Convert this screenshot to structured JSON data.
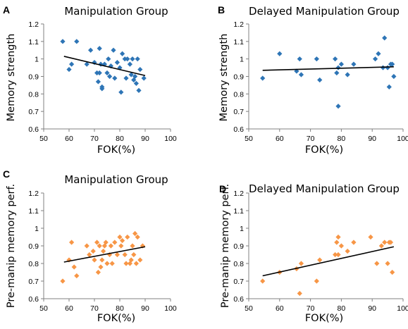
{
  "chart_data": [
    {
      "panel": "A",
      "type": "scatter",
      "title": "Manipulation Group",
      "xlabel": "FOK(%)",
      "ylabel": "Memory strength",
      "xlim": [
        50,
        100
      ],
      "ylim": [
        0.6,
        1.2
      ],
      "xticks": [
        "50",
        "60",
        "70",
        "80",
        "90",
        "100"
      ],
      "yticks": [
        "0.6",
        "0.7",
        "0.8",
        "0.9",
        "1",
        "1.1",
        "1.2"
      ],
      "marker_color": "#2E75B6",
      "marker": "diamond",
      "trendline": {
        "x": [
          58,
          90
        ],
        "y": [
          1.015,
          0.905
        ]
      },
      "points": {
        "x": [
          57.5,
          60,
          61,
          63,
          67,
          68.5,
          70,
          71,
          71.5,
          72,
          72,
          72.5,
          73,
          73,
          74,
          75,
          75.5,
          76,
          76.5,
          77.5,
          78,
          79,
          80,
          80.5,
          81,
          82,
          82.5,
          83,
          84,
          84.5,
          85,
          85.5,
          86,
          86.5,
          87,
          87.5,
          88,
          89.5
        ],
        "y": [
          1.1,
          0.94,
          0.97,
          1.1,
          0.97,
          1.05,
          0.98,
          0.92,
          0.87,
          1.06,
          0.92,
          0.97,
          0.84,
          0.83,
          0.97,
          0.92,
          1.0,
          0.9,
          0.96,
          1.05,
          0.89,
          0.98,
          0.95,
          0.81,
          1.03,
          1.0,
          0.89,
          1.0,
          0.97,
          0.91,
          1.0,
          0.88,
          0.9,
          0.86,
          1.0,
          0.82,
          0.94,
          0.89
        ]
      }
    },
    {
      "panel": "B",
      "type": "scatter",
      "title": "Delayed Manipulation Group",
      "xlabel": "FOK(%)",
      "ylabel": "Memory strength",
      "xlim": [
        50,
        100
      ],
      "ylim": [
        0.6,
        1.2
      ],
      "xticks": [
        "50",
        "60",
        "70",
        "80",
        "90",
        "100"
      ],
      "yticks": [
        "0.6",
        "0.7",
        "0.8",
        "0.9",
        "1",
        "1.1",
        "1.2"
      ],
      "marker_color": "#2E75B6",
      "marker": "diamond",
      "trendline": {
        "x": [
          54.5,
          97
        ],
        "y": [
          0.935,
          0.955
        ]
      },
      "points": {
        "x": [
          54.5,
          60,
          65.5,
          66.5,
          67,
          72,
          73,
          78,
          78.5,
          79,
          79,
          80,
          82,
          84,
          91,
          92,
          93.5,
          94,
          95,
          95.5,
          96,
          96.5,
          97
        ],
        "y": [
          0.89,
          1.03,
          0.93,
          1.0,
          0.91,
          1.0,
          0.88,
          1.0,
          0.92,
          0.73,
          0.95,
          0.97,
          0.91,
          0.97,
          1.0,
          1.03,
          0.95,
          1.12,
          0.95,
          0.84,
          0.97,
          0.97,
          0.9
        ]
      }
    },
    {
      "panel": "C",
      "type": "scatter",
      "title": "Manipulation Group",
      "xlabel": "FOK(%)",
      "ylabel": "Pre-manip memory perf.",
      "xlim": [
        50,
        100
      ],
      "ylim": [
        0.6,
        1.2
      ],
      "xticks": [
        "50",
        "60",
        "70",
        "80",
        "90",
        "100"
      ],
      "yticks": [
        "0.6",
        "0.7",
        "0.8",
        "0.9",
        "1",
        "1.1",
        "1.2"
      ],
      "marker_color": "#F79646",
      "marker": "diamond",
      "trendline": {
        "x": [
          58,
          90
        ],
        "y": [
          0.808,
          0.895
        ]
      },
      "points": {
        "x": [
          57.5,
          60,
          61,
          62,
          63,
          67,
          68,
          69.5,
          70,
          71,
          71.5,
          72,
          72.5,
          73,
          73.5,
          74,
          74.5,
          75,
          76,
          76.5,
          77,
          78,
          79,
          80,
          80.5,
          81,
          82,
          82.5,
          83,
          84,
          84.5,
          85,
          85.5,
          86,
          86.5,
          87,
          88,
          89
        ],
        "y": [
          0.7,
          0.82,
          0.92,
          0.78,
          0.73,
          0.9,
          0.85,
          0.87,
          0.82,
          0.92,
          0.75,
          0.9,
          0.78,
          0.82,
          0.87,
          0.9,
          0.92,
          0.8,
          0.85,
          0.9,
          0.8,
          0.92,
          0.85,
          0.95,
          0.9,
          0.93,
          0.85,
          0.8,
          0.95,
          0.8,
          0.82,
          0.9,
          0.85,
          0.97,
          0.8,
          0.95,
          0.82,
          0.9
        ]
      }
    },
    {
      "panel": "D",
      "type": "scatter",
      "title": "Delayed Manipulation Group",
      "xlabel": "FOK(%)",
      "ylabel": "Pre-manip memory perf.",
      "xlim": [
        50,
        100
      ],
      "ylim": [
        0.6,
        1.2
      ],
      "xticks": [
        "50",
        "60",
        "70",
        "80",
        "90",
        "100"
      ],
      "yticks": [
        "0.6",
        "0.7",
        "0.8",
        "0.9",
        "1",
        "1.1",
        "1.2"
      ],
      "marker_color": "#F79646",
      "marker": "diamond",
      "trendline": {
        "x": [
          54.5,
          97
        ],
        "y": [
          0.73,
          0.895
        ]
      },
      "points": {
        "x": [
          54.5,
          60,
          65.5,
          66.5,
          67,
          72,
          73,
          78,
          78.5,
          79,
          79,
          80,
          82,
          84,
          89.5,
          91.5,
          93,
          94,
          95,
          95.5,
          96,
          96.5
        ],
        "y": [
          0.7,
          0.75,
          0.77,
          0.63,
          0.8,
          0.7,
          0.82,
          0.85,
          0.92,
          0.95,
          0.85,
          0.9,
          0.87,
          0.92,
          0.95,
          0.8,
          0.9,
          0.92,
          0.8,
          0.92,
          0.92,
          0.75
        ]
      }
    }
  ]
}
